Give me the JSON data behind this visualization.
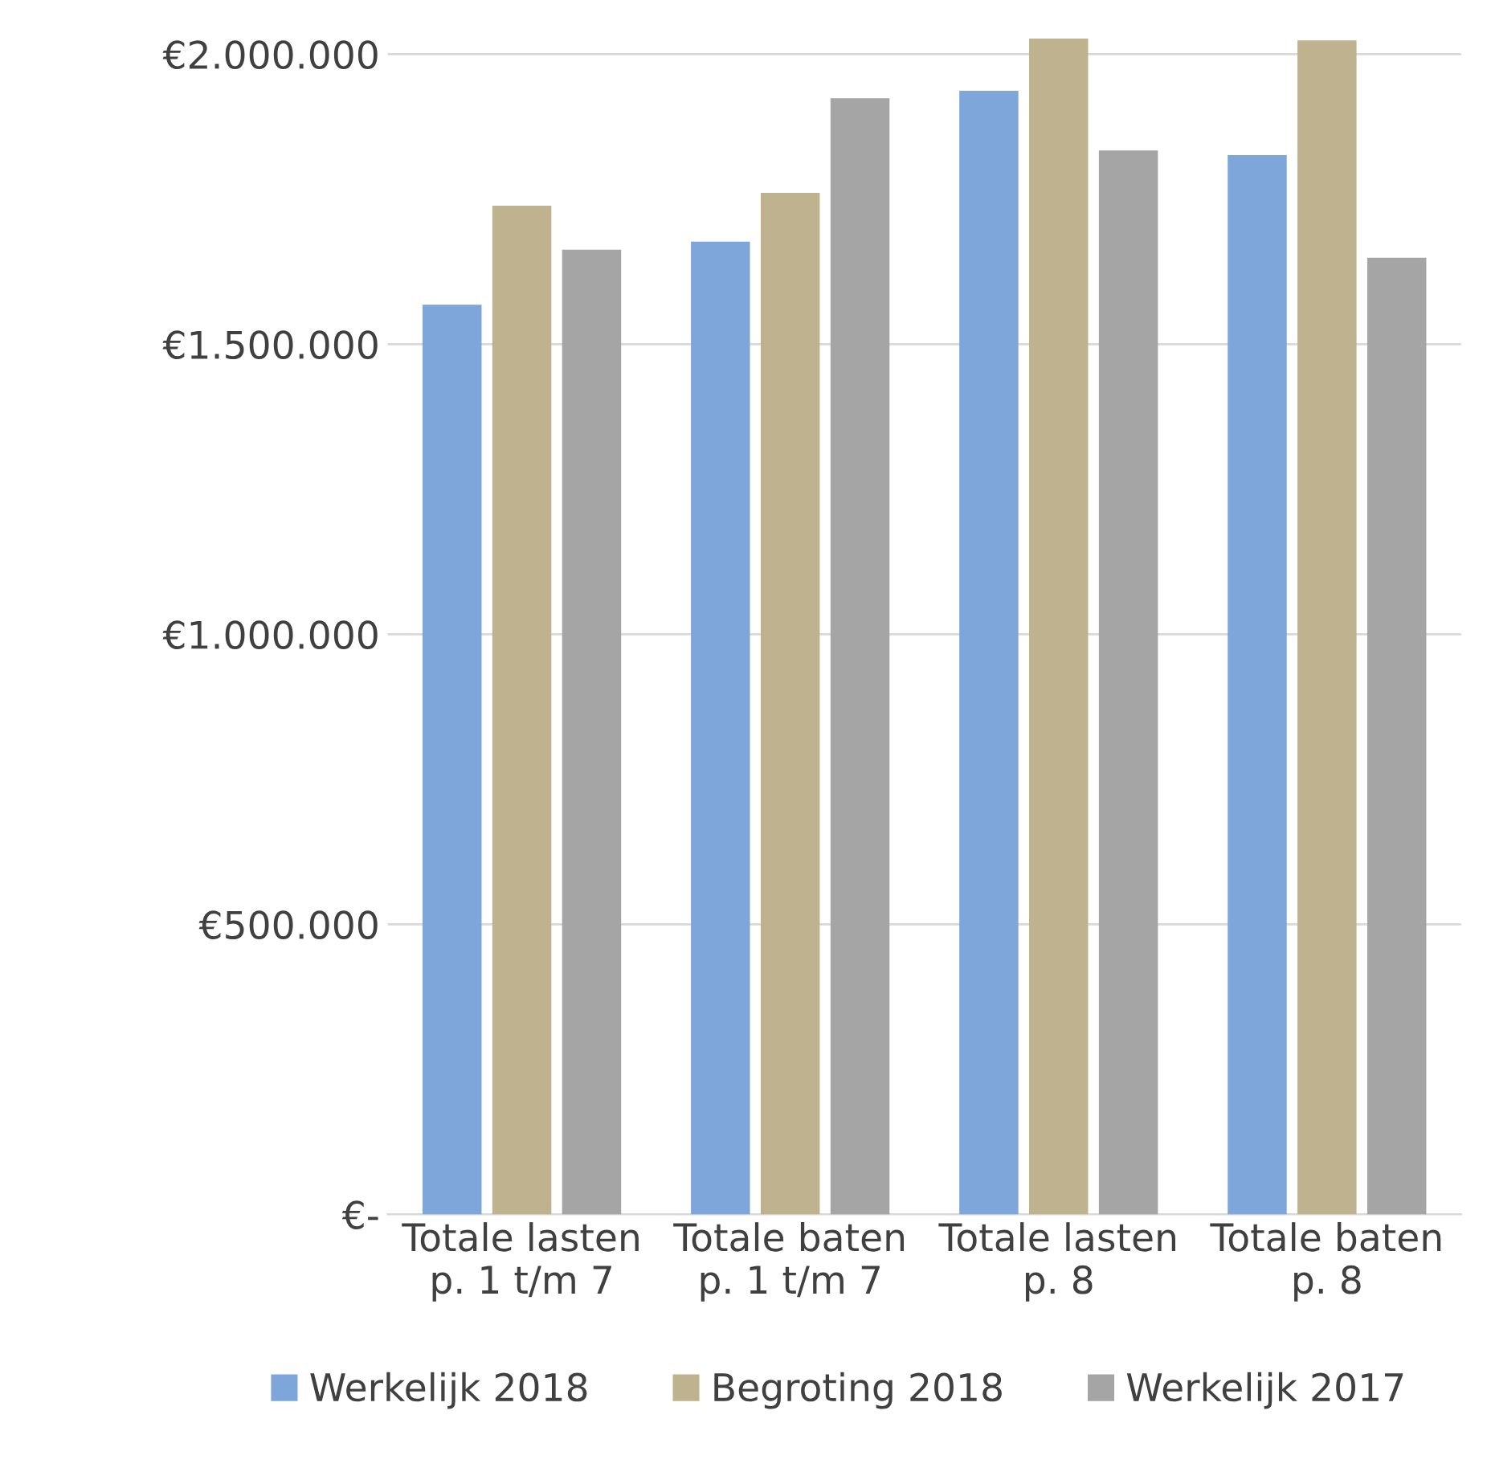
{
  "chart_data": {
    "type": "bar",
    "categories": [
      "Totale lasten\np. 1 t/m 7",
      "Totale baten\np. 1 t/m 7",
      "Totale lasten\np. 8",
      "Totale baten\np. 8"
    ],
    "series": [
      {
        "name": "Werkelijk 2018",
        "color": "#7fa6da",
        "values": [
          1568000,
          1677000,
          1937000,
          1826000
        ]
      },
      {
        "name": "Begroting 2018",
        "color": "#bfb28e",
        "values": [
          1739000,
          1761000,
          2027000,
          2024000
        ]
      },
      {
        "name": "Werkelijk 2017",
        "color": "#a5a5a5",
        "values": [
          1663000,
          1924000,
          1834000,
          1649000
        ]
      }
    ],
    "ylim": [
      0,
      2030000
    ],
    "yticks": [
      {
        "value": 0,
        "label": "€-"
      },
      {
        "value": 500000,
        "label": "€500.000"
      },
      {
        "value": 1000000,
        "label": "€1.000.000"
      },
      {
        "value": 1500000,
        "label": "€1.500.000"
      },
      {
        "value": 2000000,
        "label": "€2.000.000"
      }
    ],
    "grid": "y",
    "legend": "bottom"
  }
}
